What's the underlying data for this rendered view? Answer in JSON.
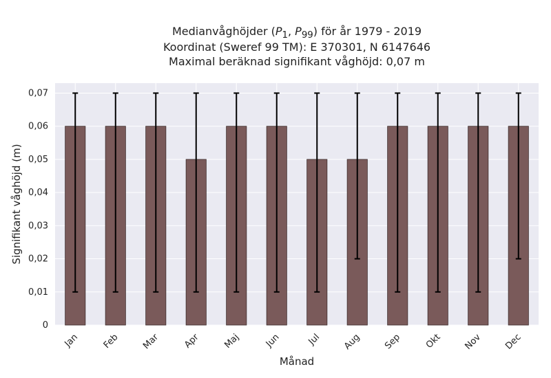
{
  "chart_data": {
    "type": "bar",
    "title_lines": [
      "Medianvåghöjder (P1, P99) för år 1979 - 2019",
      "Koordinat (Sweref 99 TM): E 370301, N 6147646",
      "Maximal beräknad signifikant våghöjd: 0,07 m"
    ],
    "title_line1": {
      "prefix": "Medianvåghöjder (",
      "p1": "P",
      "p1_sub": "1",
      "sep": ", ",
      "p2": "P",
      "p2_sub": "99",
      "suffix": ") för år 1979 - 2019"
    },
    "xlabel": "Månad",
    "ylabel": "Signifikant våghöjd (m)",
    "categories": [
      "Jan",
      "Feb",
      "Mar",
      "Apr",
      "Maj",
      "Jun",
      "Jul",
      "Aug",
      "Sep",
      "Okt",
      "Nov",
      "Dec"
    ],
    "values": [
      0.06,
      0.06,
      0.06,
      0.05,
      0.06,
      0.06,
      0.05,
      0.05,
      0.06,
      0.06,
      0.06,
      0.06
    ],
    "error_low": [
      0.01,
      0.01,
      0.01,
      0.01,
      0.01,
      0.01,
      0.01,
      0.02,
      0.01,
      0.01,
      0.01,
      0.02
    ],
    "error_high": [
      0.07,
      0.07,
      0.07,
      0.07,
      0.07,
      0.07,
      0.07,
      0.07,
      0.07,
      0.07,
      0.07,
      0.07
    ],
    "ylim": [
      0,
      0.073
    ],
    "yticks": [
      0,
      0.01,
      0.02,
      0.03,
      0.04,
      0.05,
      0.06,
      0.07
    ],
    "ytick_labels": [
      "0",
      "0,01",
      "0,02",
      "0,03",
      "0,04",
      "0,05",
      "0,06",
      "0,07"
    ],
    "grid": true,
    "colors": {
      "bar": "#7a5a5a",
      "bar_edge": "#3e2e2e",
      "error": "#000000",
      "background": "#eaeaf2",
      "grid": "#ffffff"
    }
  }
}
